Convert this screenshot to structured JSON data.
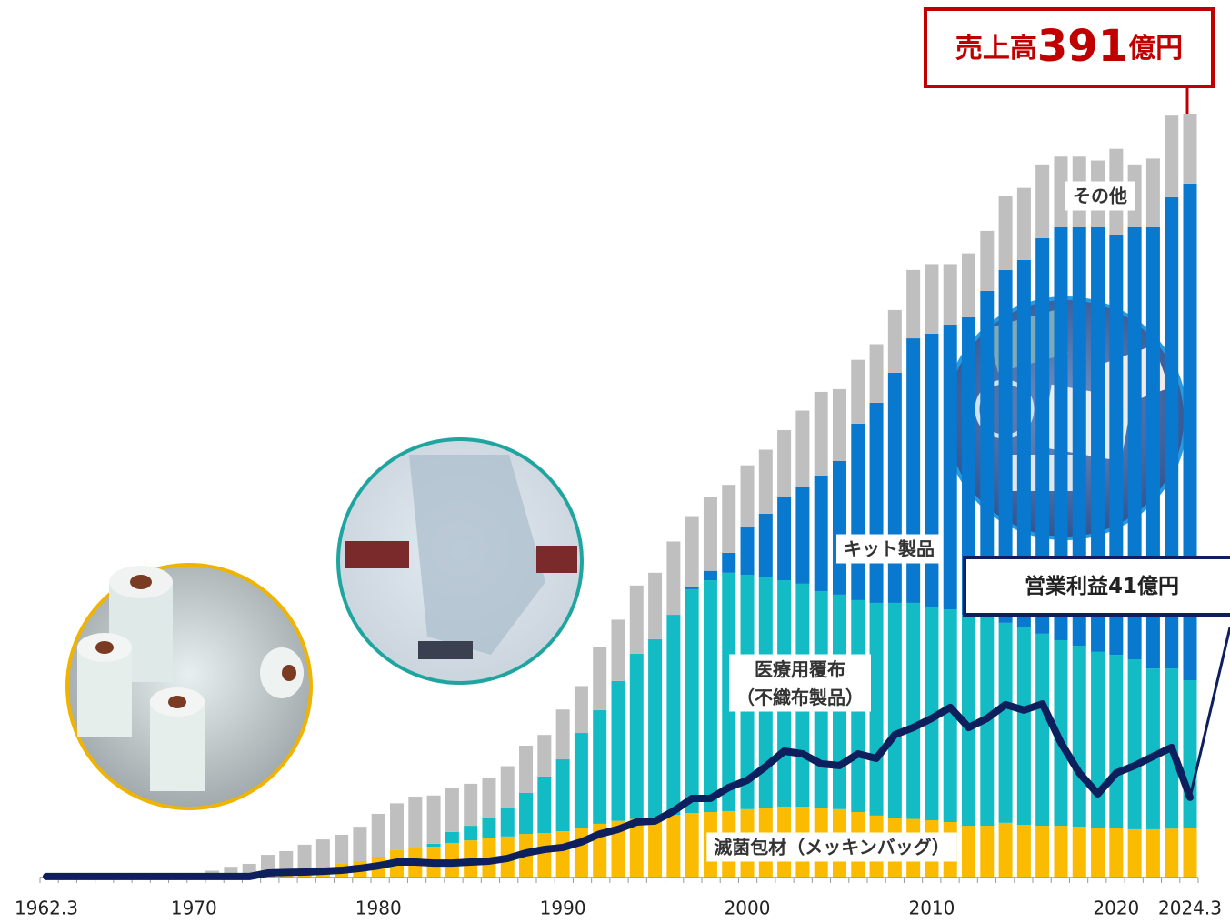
{
  "chart_data": {
    "type": "bar",
    "categories": [
      "1962.3",
      null,
      null,
      null,
      null,
      null,
      null,
      null,
      "1970",
      null,
      null,
      null,
      null,
      null,
      null,
      null,
      null,
      null,
      "1980",
      null,
      null,
      null,
      null,
      null,
      null,
      null,
      null,
      null,
      "1990",
      null,
      null,
      null,
      null,
      null,
      null,
      null,
      null,
      null,
      "2000",
      null,
      null,
      null,
      null,
      null,
      null,
      null,
      null,
      null,
      "2010",
      null,
      null,
      null,
      null,
      null,
      null,
      null,
      null,
      null,
      "2020",
      null,
      null,
      null,
      "2024.3"
    ],
    "stacked": true,
    "series": [
      {
        "name": "滅菌包材（メッキンバッグ）",
        "color": "#fbbb00",
        "values": [
          0,
          0,
          0,
          0,
          0,
          0,
          0,
          0,
          0,
          0,
          0,
          0,
          2.3,
          3.3,
          4.7,
          5.6,
          7,
          8.4,
          10.7,
          14,
          14.9,
          15.8,
          17.7,
          19,
          20,
          21,
          22.3,
          22.8,
          23.7,
          25.6,
          27.5,
          29,
          30,
          30.7,
          32,
          33,
          33.5,
          34,
          35,
          35.4,
          36.3,
          36.3,
          35.8,
          35,
          33.5,
          31.7,
          30.7,
          30,
          29.3,
          28.4,
          26.5,
          26.5,
          28,
          27,
          26.5,
          26.5,
          26,
          25.6,
          25.6,
          24.7,
          24.7,
          25,
          25.6
        ]
      },
      {
        "name": "医療用覆布\n（不織布製品）",
        "color": "#13bcc4",
        "values": [
          0,
          0,
          0,
          0,
          0,
          0,
          0,
          0,
          0,
          0,
          0,
          0,
          0,
          0,
          0,
          0,
          0,
          0,
          0,
          0,
          0,
          1.5,
          5.6,
          7.5,
          10.3,
          14.8,
          21,
          28.9,
          36.8,
          48.4,
          58.2,
          71.6,
          84.5,
          91.3,
          102.5,
          114.6,
          118.7,
          122,
          120,
          118.2,
          115.9,
          114.1,
          110.8,
          109.8,
          108.5,
          108.9,
          109.9,
          110.6,
          109.4,
          108.9,
          108,
          107.1,
          102.4,
          101,
          98.3,
          95,
          92.7,
          89.9,
          88.4,
          87,
          82.3,
          82,
          75.4
        ]
      },
      {
        "name": "キット製品",
        "color": "#0879cf",
        "values": [
          0,
          0,
          0,
          0,
          0,
          0,
          0,
          0,
          0,
          0,
          0,
          0,
          0,
          0,
          0,
          0,
          0,
          0,
          0,
          0,
          0,
          0,
          0,
          0,
          0,
          0,
          0,
          0,
          0,
          0,
          0,
          0,
          0,
          0,
          0,
          1.4,
          4.8,
          10.2,
          24.2,
          32.6,
          42.4,
          49.3,
          59.2,
          68.4,
          90.3,
          102.4,
          117.8,
          135.4,
          139.7,
          145.7,
          152.3,
          166.7,
          180.6,
          188.1,
          202.5,
          211.4,
          214.2,
          217.4,
          215.1,
          221.2,
          225.9,
          241.2,
          254.2
        ]
      },
      {
        "name": "その他",
        "color": "#bfbfbf",
        "values": [
          0.3,
          0.4,
          0.5,
          0.6,
          0.8,
          1,
          1.2,
          1.5,
          2,
          3.5,
          5.5,
          7,
          9.3,
          10.2,
          12.1,
          13.9,
          14.9,
          17.6,
          21.9,
          24,
          26.5,
          24.7,
          22.3,
          21.5,
          20.7,
          21.2,
          24.2,
          21.3,
          25.5,
          24,
          32.3,
          31.4,
          35,
          34,
          37.5,
          36,
          38,
          34.8,
          31.8,
          32.8,
          34.4,
          39.3,
          42.8,
          36.8,
          32.7,
          30,
          32.1,
          35,
          35.6,
          31,
          32.7,
          30.7,
          38,
          36.9,
          37.7,
          36.1,
          36.1,
          34.1,
          43.9,
          32.1,
          35.1,
          41.8,
          35.8
        ]
      }
    ],
    "profit": {
      "type": "line",
      "color": "#0d1f5c",
      "values": [
        0.5,
        0.5,
        0.5,
        0.5,
        0.5,
        0.5,
        0.5,
        0.5,
        0.5,
        0.5,
        0.5,
        0.5,
        2.3,
        2.6,
        2.8,
        3.2,
        3.7,
        4.7,
        6,
        7.9,
        7.9,
        7.4,
        7.4,
        7.9,
        8.4,
        9.8,
        12.6,
        14.4,
        15.4,
        18.2,
        22.3,
        24.7,
        28.4,
        28.9,
        34,
        40.5,
        40.5,
        46.1,
        49.8,
        56.8,
        64.7,
        63.3,
        58.2,
        57.3,
        63.3,
        61,
        73.1,
        76.8,
        81.5,
        87.1,
        76.8,
        81.5,
        88.5,
        85.7,
        88.9,
        69,
        53.5,
        42.8,
        53.5,
        57.3,
        62,
        66.6,
        41
      ]
    },
    "sales_label": {
      "prefix": "売上高",
      "value": 391,
      "unit": "億円"
    },
    "profit_label": {
      "prefix": "営業利益",
      "value": 41,
      "unit": "億円"
    }
  }
}
